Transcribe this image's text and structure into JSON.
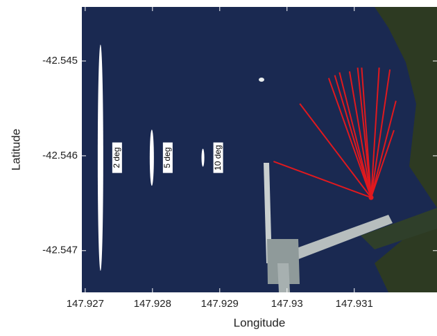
{
  "chart_data": {
    "type": "map-rays",
    "xlabel": "Longitude",
    "ylabel": "Latitude",
    "xlim": [
      147.92695,
      147.93223
    ],
    "ylim": [
      -42.54744,
      -42.54443
    ],
    "xticks": [
      147.927,
      147.928,
      147.929,
      147.93,
      147.931
    ],
    "yticks": [
      -42.547,
      -42.546,
      -42.545
    ],
    "ellipses": [
      {
        "label": "2 deg",
        "x": 147.927227,
        "y": -42.54602,
        "rx": 4.12e-05,
        "ry": 0.001193
      },
      {
        "label": "5 deg",
        "x": 147.92799,
        "y": -42.54602,
        "rx": 3.1e-05,
        "ry": 0.000296
      },
      {
        "label": "10 deg",
        "x": 147.92875,
        "y": -42.54602,
        "rx": 2.1e-05,
        "ry": 9.5e-05
      }
    ],
    "ellipse_color": "#ffffff",
    "rays": {
      "color": "#e0191e",
      "x0": 147.93125,
      "y0": -42.54644,
      "x": [
        147.9298,
        147.93019,
        147.93062,
        147.93071,
        147.93078,
        147.93093,
        147.93105,
        147.93111,
        147.93137,
        147.93153,
        147.93162,
        147.93159
      ],
      "y": [
        -42.54606,
        -42.54545,
        -42.54518,
        -42.54515,
        -42.54512,
        -42.54511,
        -42.54507,
        -42.54507,
        -42.54507,
        -42.54509,
        -42.54542,
        -42.54573
      ]
    }
  }
}
